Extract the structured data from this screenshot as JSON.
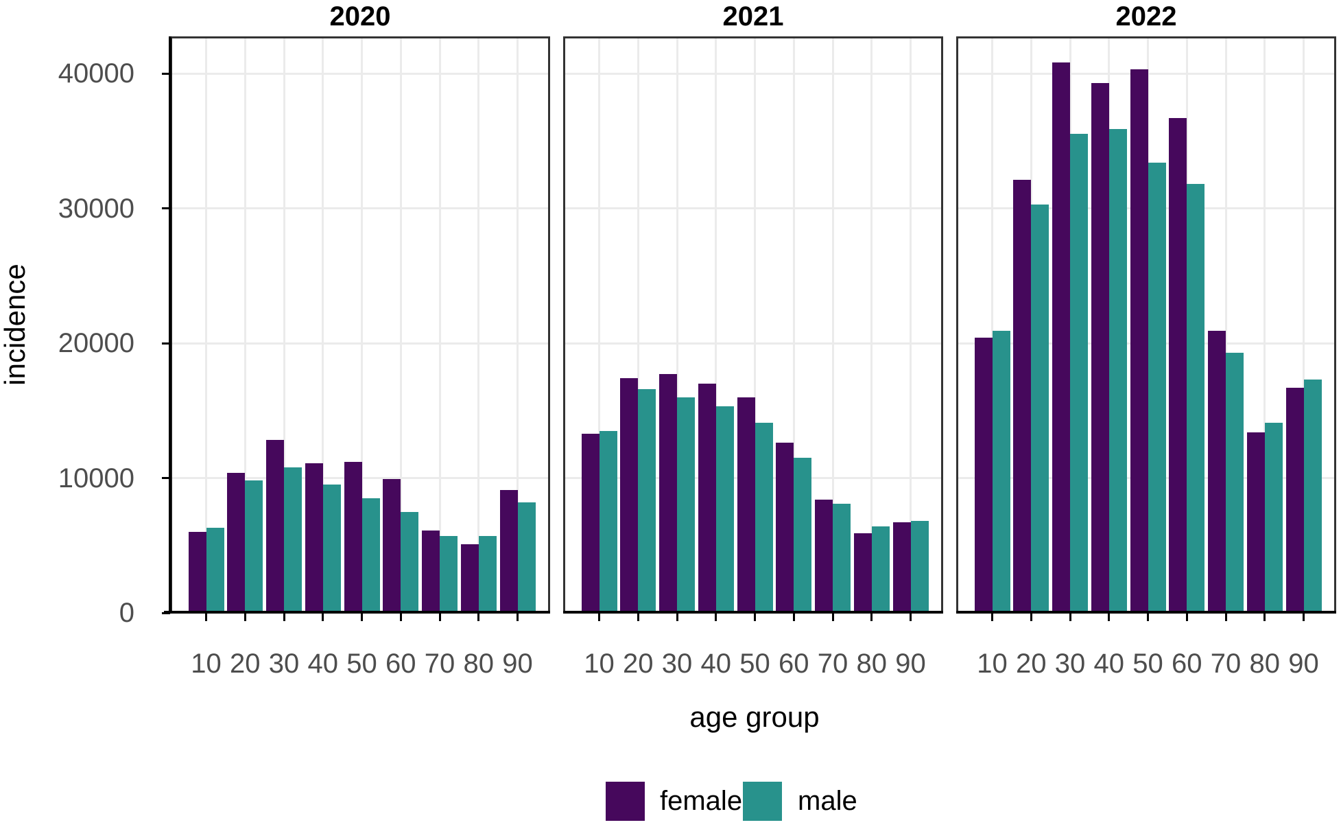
{
  "figure": {
    "y_axis": {
      "title": "incidence",
      "ticks": [
        {
          "value": 0,
          "label": "0"
        },
        {
          "value": 10000,
          "label": "10000"
        },
        {
          "value": 20000,
          "label": "20000"
        },
        {
          "value": 30000,
          "label": "30000"
        },
        {
          "value": 40000,
          "label": "40000"
        }
      ]
    },
    "x_axis": {
      "title": "age group"
    },
    "legend": [
      {
        "label": "female",
        "color": "#46085C"
      },
      {
        "label": "male",
        "color": "#28928C"
      }
    ],
    "colors": {
      "grid": "#EBEBEB",
      "panel_border": "#333333",
      "axis": "#000000",
      "tick_label": "#4D4D4D",
      "background": "#FFFFFF"
    }
  },
  "chart_data": {
    "type": "bar",
    "grouping": "dodged",
    "facet_by": "year",
    "title": "",
    "xlabel": "age group",
    "ylabel": "incidence",
    "categories": [
      "10",
      "20",
      "30",
      "40",
      "50",
      "60",
      "70",
      "80",
      "90"
    ],
    "ylim": [
      0,
      42700
    ],
    "y_breaks": [
      0,
      10000,
      20000,
      30000,
      40000
    ],
    "grid": true,
    "legend_position": "bottom",
    "facets": [
      {
        "title": "2020",
        "series": [
          {
            "name": "female",
            "values": [
              6000,
              10400,
              12800,
              11100,
              11200,
              9900,
              6100,
              5100,
              9100
            ]
          },
          {
            "name": "male",
            "values": [
              6300,
              9800,
              10800,
              9500,
              8500,
              7500,
              5700,
              5700,
              8200
            ]
          }
        ]
      },
      {
        "title": "2021",
        "series": [
          {
            "name": "female",
            "values": [
              13300,
              17400,
              17700,
              17000,
              16000,
              12600,
              8400,
              5900,
              6700
            ]
          },
          {
            "name": "male",
            "values": [
              13500,
              16600,
              16000,
              15300,
              14100,
              11500,
              8100,
              6400,
              6800
            ]
          }
        ]
      },
      {
        "title": "2022",
        "series": [
          {
            "name": "female",
            "values": [
              20400,
              32100,
              40800,
              39300,
              40300,
              36700,
              20900,
              13400,
              16700
            ]
          },
          {
            "name": "male",
            "values": [
              20900,
              30300,
              35500,
              35900,
              33400,
              31800,
              19300,
              14100,
              17300
            ]
          }
        ]
      }
    ]
  }
}
